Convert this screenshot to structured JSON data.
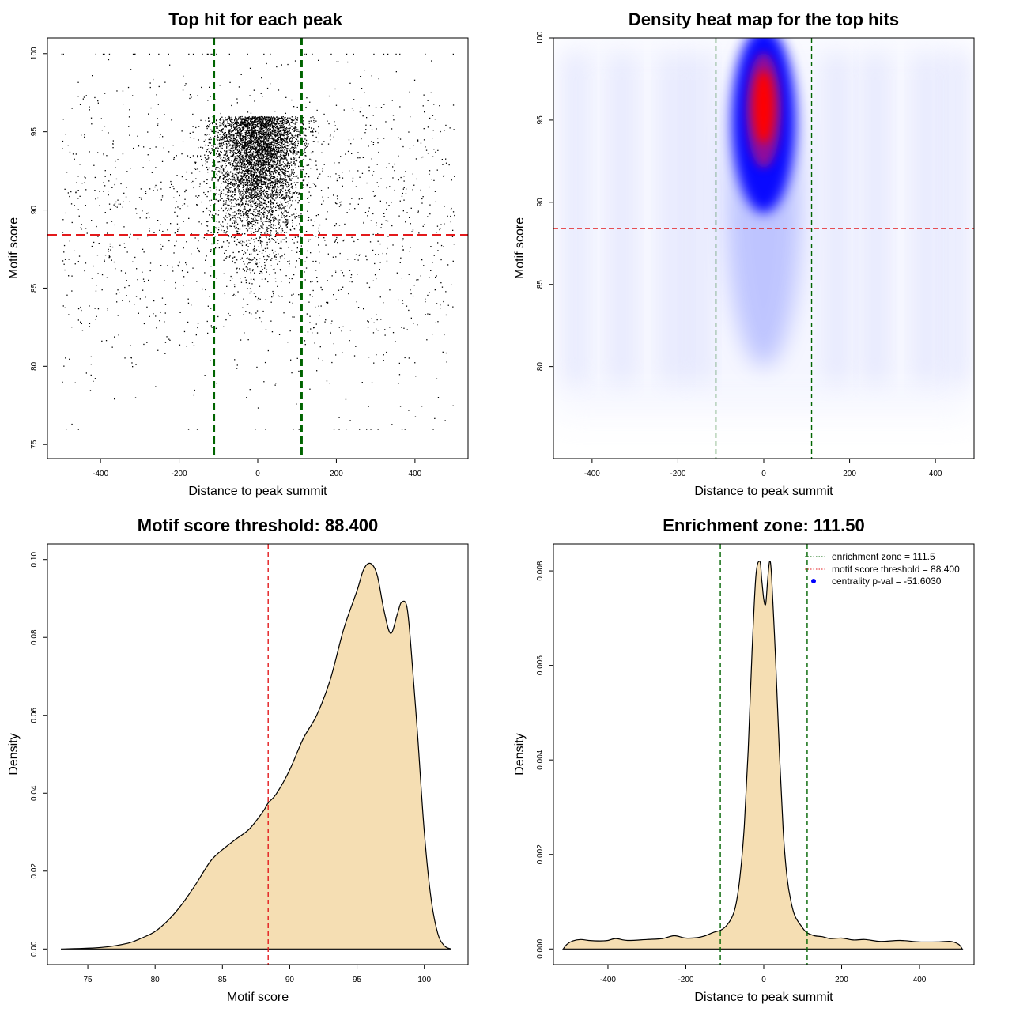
{
  "colors": {
    "green": "#006400",
    "red_line": "#e31a1c",
    "fill": "#f5deb3",
    "ink": "#000000",
    "heat_low": "#ffffff",
    "heat_mid": "#0000ff",
    "heat_high": "#ff0000"
  },
  "chart_data": [
    {
      "id": "scatter",
      "type": "scatter",
      "title": "Top hit for each peak",
      "xlabel": "Distance to peak summit",
      "ylabel": "Motif score",
      "xlim": [
        -535,
        535
      ],
      "ylim": [
        74.1,
        101.0
      ],
      "xticks": [
        -400,
        -200,
        0,
        200,
        400
      ],
      "yticks": [
        75,
        80,
        85,
        90,
        95,
        100
      ],
      "vlines": [
        -111.5,
        111.5
      ],
      "hline": 88.4,
      "point_summary": {
        "count_approx": 6500,
        "x_range": [
          -500,
          500
        ],
        "y_range": [
          75,
          100
        ],
        "center_x": 0,
        "central_halfwidth": 60,
        "center_mode_y": 96
      }
    },
    {
      "id": "heatmap",
      "type": "heatmap",
      "title": "Density heat map for the top hits",
      "xlabel": "Distance to peak summit",
      "ylabel": "Motif score",
      "xlim": [
        -490,
        490
      ],
      "ylim": [
        74.4,
        100.0
      ],
      "xticks": [
        -400,
        -200,
        0,
        200,
        400
      ],
      "yticks": [
        80,
        85,
        90,
        95,
        100
      ],
      "vlines": [
        -111.5,
        111.5
      ],
      "hline": 88.4,
      "hotspot": {
        "x": 0,
        "y": 95.8
      }
    },
    {
      "id": "score-density",
      "type": "area",
      "title": "Motif score threshold: 88.400",
      "xlabel": "Motif score",
      "ylabel": "Density",
      "xlim": [
        72,
        103.25
      ],
      "ylim": [
        -0.004,
        0.104
      ],
      "xticks": [
        75,
        80,
        85,
        90,
        95,
        100
      ],
      "yticks": [
        0.0,
        0.02,
        0.04,
        0.06,
        0.08,
        0.1
      ],
      "vlines": [
        88.4
      ],
      "x": [
        73,
        76,
        78,
        79,
        80,
        81,
        82,
        83,
        84,
        84.5,
        85,
        86,
        87,
        88,
        88.4,
        89,
        90,
        91,
        92,
        93,
        94,
        95,
        95.5,
        96,
        96.5,
        97,
        97.5,
        98,
        98.3,
        98.7,
        99,
        99.5,
        100,
        100.5,
        101,
        101.5,
        102
      ],
      "y": [
        0.0,
        0.0004,
        0.0015,
        0.0028,
        0.0045,
        0.0075,
        0.0115,
        0.0165,
        0.022,
        0.024,
        0.0255,
        0.0282,
        0.0308,
        0.0352,
        0.0375,
        0.0398,
        0.046,
        0.054,
        0.06,
        0.069,
        0.082,
        0.092,
        0.0975,
        0.099,
        0.096,
        0.087,
        0.081,
        0.086,
        0.089,
        0.088,
        0.078,
        0.055,
        0.03,
        0.013,
        0.004,
        0.0008,
        0.0
      ]
    },
    {
      "id": "distance-density",
      "type": "area",
      "title": "Enrichment zone: 111.50",
      "xlabel": "Distance to peak summit",
      "ylabel": "Density",
      "xlim": [
        -540,
        540
      ],
      "ylim": [
        -0.00033,
        0.00857
      ],
      "xticks": [
        -400,
        -200,
        0,
        200,
        400
      ],
      "yticks": [
        0.0,
        0.002,
        0.004,
        0.006,
        0.008
      ],
      "vlines": [
        -111.5,
        111.5
      ],
      "x": [
        -515,
        -505,
        -490,
        -470,
        -450,
        -420,
        -400,
        -380,
        -350,
        -300,
        -260,
        -230,
        -200,
        -170,
        -150,
        -130,
        -110,
        -95,
        -80,
        -70,
        -60,
        -50,
        -40,
        -30,
        -20,
        -10,
        -5,
        0,
        5,
        10,
        15,
        20,
        30,
        40,
        50,
        60,
        70,
        80,
        95,
        110,
        130,
        150,
        170,
        200,
        230,
        260,
        300,
        350,
        400,
        450,
        480,
        500,
        510
      ],
      "y": [
        0.0,
        0.0001,
        0.00017,
        0.0002,
        0.00018,
        0.00017,
        0.00018,
        0.00022,
        0.00018,
        0.0002,
        0.00022,
        0.00028,
        0.00023,
        0.00024,
        0.00028,
        0.00035,
        0.0004,
        0.0005,
        0.0007,
        0.001,
        0.0016,
        0.0026,
        0.0042,
        0.0063,
        0.0079,
        0.0082,
        0.0078,
        0.0074,
        0.0073,
        0.0078,
        0.0082,
        0.0079,
        0.0062,
        0.0042,
        0.0025,
        0.0015,
        0.001,
        0.0007,
        0.0005,
        0.00035,
        0.00028,
        0.00026,
        0.00022,
        0.00023,
        0.00019,
        0.0002,
        0.00016,
        0.00018,
        0.00015,
        0.00015,
        0.00016,
        0.0001,
        0.0
      ],
      "legend": {
        "placement": "top-right",
        "entries": [
          {
            "label": "enrichment zone = 111.5",
            "style": "dotted",
            "color": "#006400"
          },
          {
            "label": "motif score threshold = 88.400",
            "style": "dotted",
            "color": "#e31a1c"
          },
          {
            "label": "centrality p-val = -51.6030",
            "style": "point",
            "color": "#0000ff"
          }
        ]
      }
    }
  ]
}
